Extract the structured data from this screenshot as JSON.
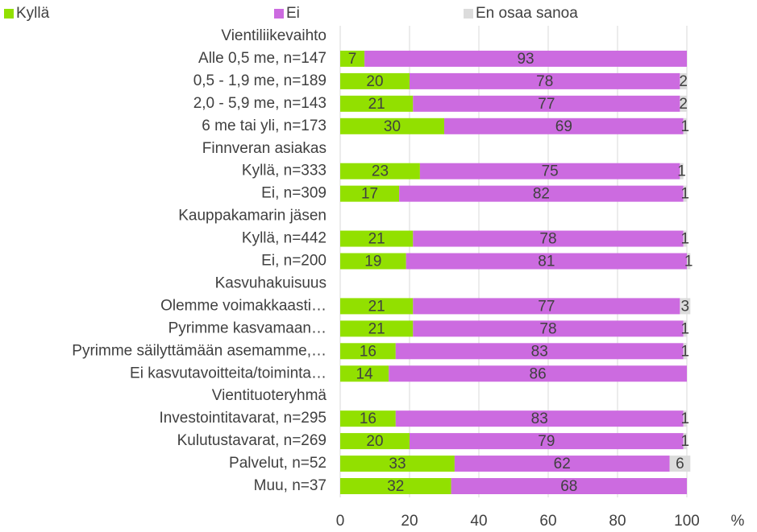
{
  "chart_data": {
    "type": "stacked_barh",
    "x_label": "%",
    "categories": [
      "Vientiliikevaihto",
      "Alle 0,5 me, n=147",
      "0,5 - 1,9 me, n=189",
      "2,0 - 5,9 me, n=143",
      "6 me tai yli, n=173",
      "Finnveran asiakas",
      "Kyllä, n=333",
      "Ei, n=309",
      "Kauppakamarin jäsen",
      "Kyllä, n=442",
      "Ei, n=200",
      "Kasvuhakuisuus",
      "Olemme voimakkaasti…",
      "Pyrimme kasvamaan…",
      "Pyrimme säilyttämään asemamme,…",
      "Ei kasvutavoitteita/toiminta…",
      "Vientituoteryhmä",
      "Investointitavarat, n=295",
      "Kulutustavarat, n=269",
      "Palvelut, n=52",
      "Muu, n=37"
    ],
    "series": [
      {
        "name": "Kyllä",
        "color": "#92e000",
        "values": [
          null,
          7,
          20,
          21,
          30,
          null,
          23,
          17,
          null,
          21,
          19,
          null,
          21,
          21,
          16,
          14,
          null,
          16,
          20,
          33,
          32
        ]
      },
      {
        "name": "Ei",
        "color": "#cc6be0",
        "values": [
          null,
          93,
          78,
          77,
          69,
          null,
          75,
          82,
          null,
          78,
          81,
          null,
          77,
          78,
          83,
          86,
          null,
          83,
          79,
          62,
          68
        ]
      },
      {
        "name": "En osaa sanoa",
        "color": "#dcdcdc",
        "values": [
          null,
          null,
          2,
          2,
          1,
          null,
          1,
          1,
          null,
          1,
          1,
          null,
          3,
          1,
          1,
          null,
          null,
          1,
          1,
          6,
          null
        ]
      }
    ],
    "xlim": [
      0,
      100
    ],
    "xticks": [
      0,
      20,
      40,
      60,
      80,
      100
    ],
    "grid": true,
    "legend": "top"
  }
}
